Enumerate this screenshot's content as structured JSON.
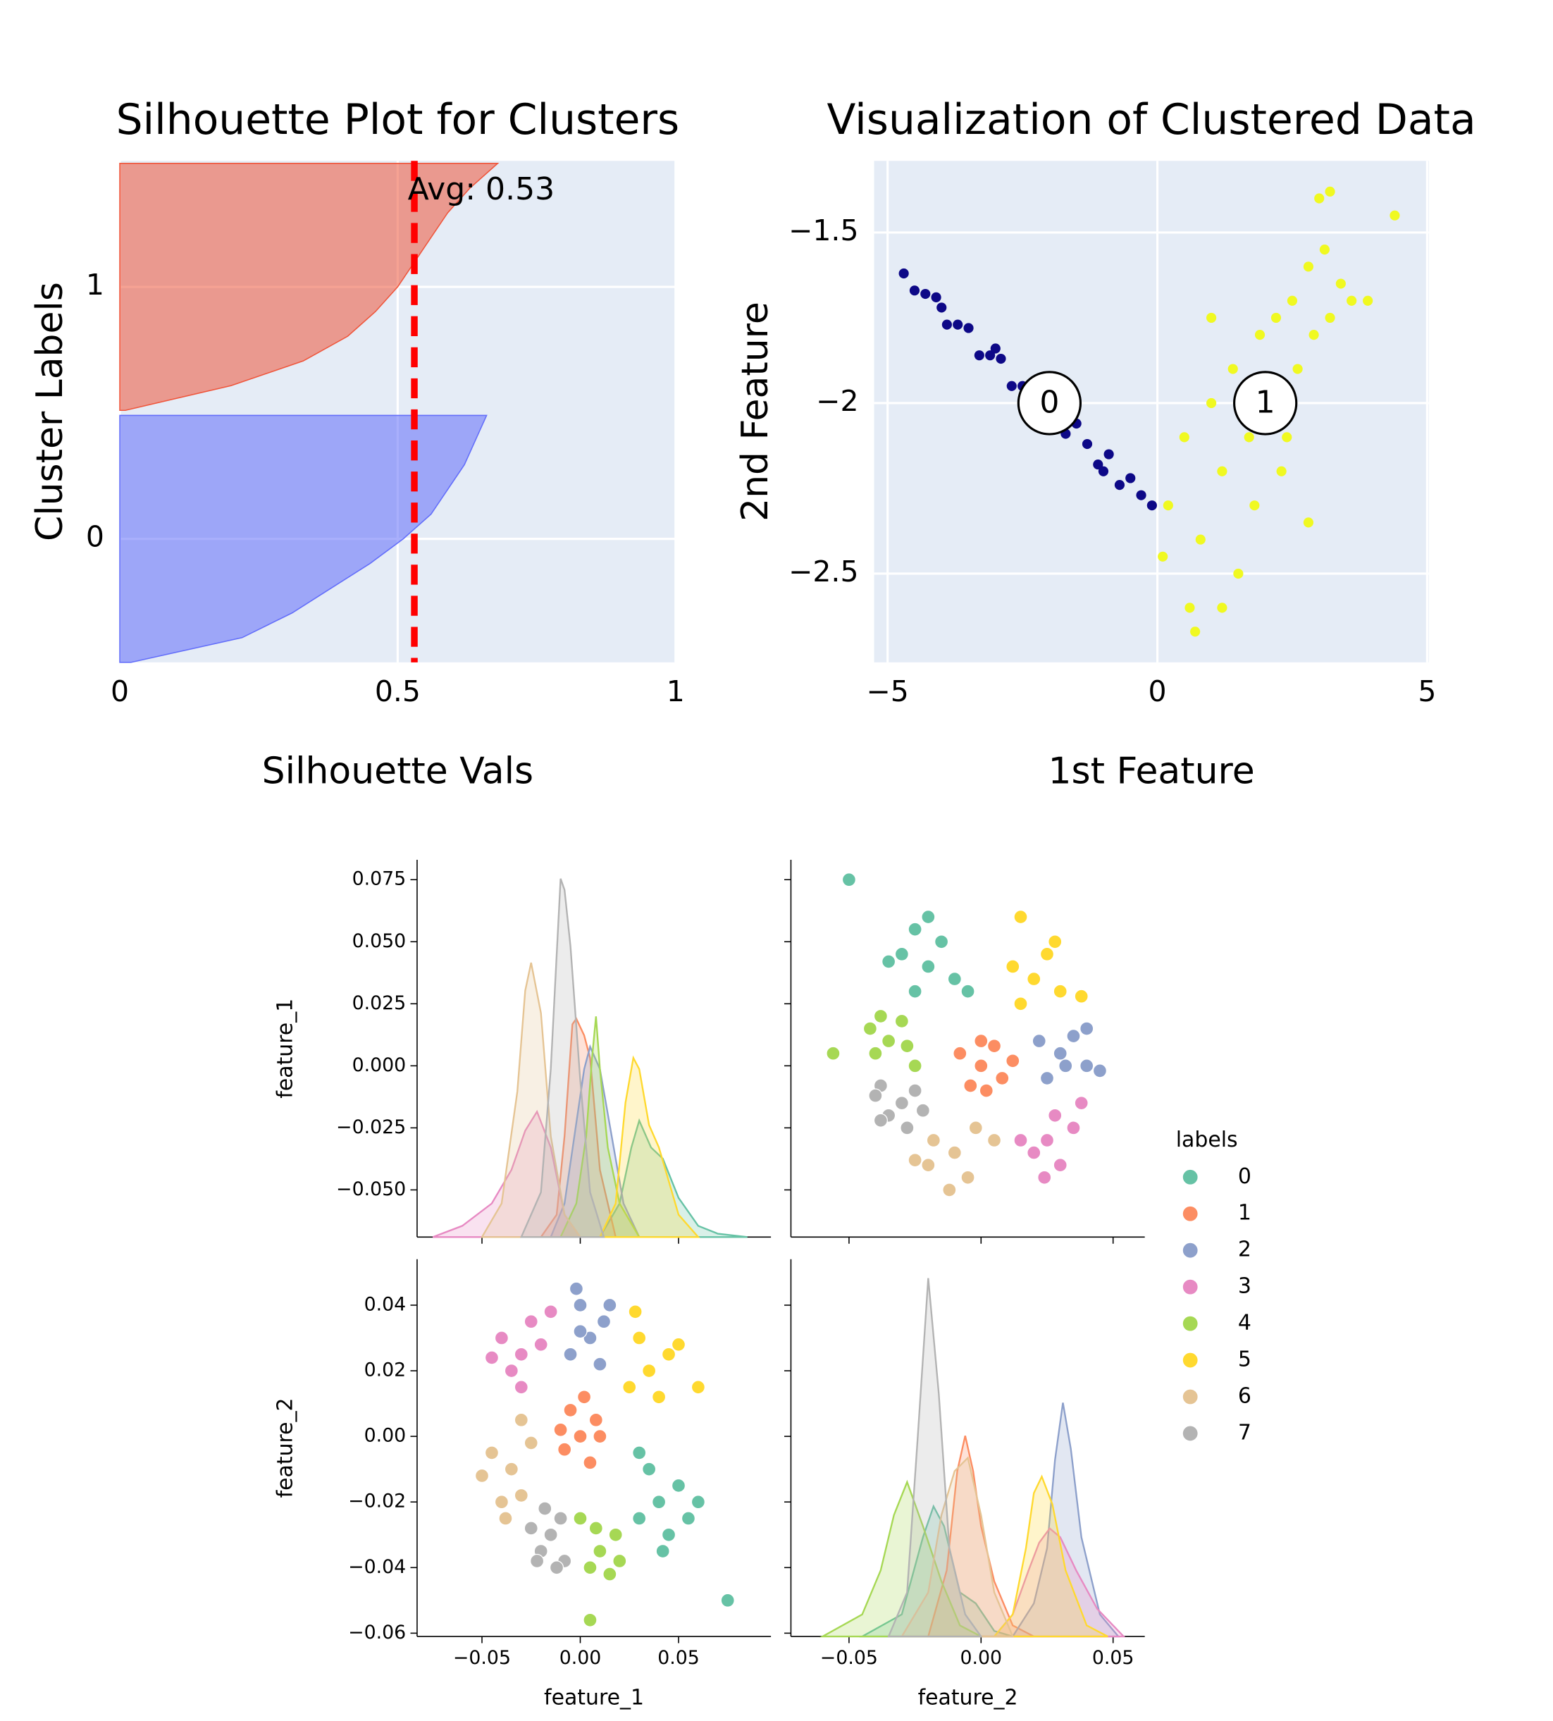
{
  "chart_data": [
    {
      "type": "silhouette",
      "title": "Silhouette Plot for Clusters",
      "xlabel": "Silhouette Vals",
      "ylabel": "Cluster Labels",
      "xlim": [
        0,
        1
      ],
      "xticks": [
        0,
        0.5,
        1
      ],
      "ylim": [
        -0.49,
        1.5
      ],
      "yticks": [
        0,
        1
      ],
      "grid": true,
      "series": [
        {
          "color": "#636efa",
          "values": [
            0.02,
            0.22,
            0.31,
            0.38,
            0.45,
            0.51,
            0.56,
            0.59,
            0.62,
            0.64,
            0.66
          ]
        },
        {
          "color": "#ef553b",
          "values": [
            0.01,
            0.2,
            0.33,
            0.41,
            0.46,
            0.5,
            0.53,
            0.56,
            0.59,
            0.63,
            0.68
          ]
        }
      ],
      "avg_line": {
        "value": 0.53,
        "label": "Avg: 0.53",
        "color": "#ff0000"
      }
    },
    {
      "type": "scatter",
      "title": "Visualization of Clustered Data",
      "xlabel": "1st Feature",
      "ylabel": "2nd Feature",
      "xlim": [
        -5.25,
        5.03
      ],
      "xticks": [
        {
          "value": -5,
          "label": "−5"
        },
        0,
        5
      ],
      "ylim": [
        -2.76,
        -1.29
      ],
      "yticks": [
        {
          "value": -2.5,
          "label": "−2.5"
        },
        {
          "value": -2,
          "label": "−2"
        },
        {
          "value": -1.5,
          "label": "−1.5"
        }
      ],
      "grid": true,
      "series": [
        {
          "color": "#0d0887",
          "x": [
            -4.7,
            -4.5,
            -4.3,
            -4.1,
            -3.9,
            -3.7,
            -3.5,
            -3.3,
            -3.1,
            -2.9,
            -2.7,
            -2.5,
            -2.3,
            -2.1,
            -1.9,
            -1.7,
            -1.5,
            -1.3,
            -1.1,
            -0.9,
            -0.7,
            -0.5,
            -0.3,
            -0.1,
            -3.0,
            -2.0,
            -1.0,
            -4.0
          ],
          "values": [
            -1.62,
            -1.67,
            -1.68,
            -1.69,
            -1.77,
            -1.77,
            -1.78,
            -1.86,
            -1.86,
            -1.87,
            -1.95,
            -1.95,
            -1.96,
            -2.03,
            -2.03,
            -2.09,
            -2.06,
            -2.12,
            -2.18,
            -2.15,
            -2.24,
            -2.22,
            -2.27,
            -2.3,
            -1.84,
            -2.04,
            -2.2,
            -1.72
          ]
        },
        {
          "color": "#f0f921",
          "x": [
            0.2,
            0.5,
            0.8,
            1.0,
            1.2,
            1.4,
            1.5,
            1.7,
            1.9,
            2.0,
            2.2,
            2.3,
            2.5,
            2.6,
            2.8,
            2.9,
            3.1,
            3.2,
            3.4,
            3.6,
            3.0,
            3.2,
            4.4,
            0.6,
            0.7,
            1.2,
            1.8,
            2.4,
            0.1,
            1.0,
            3.9,
            2.8
          ],
          "values": [
            -2.3,
            -2.1,
            -2.4,
            -2.0,
            -2.2,
            -1.9,
            -2.5,
            -2.1,
            -1.8,
            -2.0,
            -1.75,
            -2.2,
            -1.7,
            -1.9,
            -1.6,
            -1.8,
            -1.55,
            -1.75,
            -1.65,
            -1.7,
            -1.4,
            -1.38,
            -1.45,
            -2.6,
            -2.67,
            -2.6,
            -2.3,
            -2.1,
            -2.45,
            -1.75,
            -1.7,
            -2.35
          ]
        }
      ],
      "centers": {
        "labels": [
          "0",
          "1"
        ],
        "x": [
          -2,
          2
        ],
        "values": [
          -2,
          -2
        ]
      }
    },
    {
      "type": "pairplot",
      "hue_title": "labels",
      "legend": "center right",
      "vars": [
        {
          "name": "feature_1",
          "xlim": [
            -0.083,
            0.097
          ],
          "xticks": [
            {
              "value": -0.05,
              "label": "−0.05"
            },
            {
              "value": 0,
              "label": "0.00"
            },
            0.05
          ],
          "ylim": [
            -0.069,
            0.083
          ],
          "yticks": [
            {
              "value": -0.05,
              "label": "−0.050"
            },
            {
              "value": -0.025,
              "label": "−0.025"
            },
            {
              "value": 0,
              "label": "0.000"
            },
            0.025,
            {
              "value": 0.05,
              "label": "0.050"
            },
            0.075
          ]
        },
        {
          "name": "feature_2",
          "xlim": [
            -0.072,
            0.062
          ],
          "xticks": [
            {
              "value": -0.05,
              "label": "−0.05"
            },
            {
              "value": 0,
              "label": "0.00"
            },
            0.05
          ],
          "ylim": [
            -0.061,
            0.054
          ],
          "yticks": [
            {
              "value": -0.06,
              "label": "−0.06"
            },
            {
              "value": -0.04,
              "label": "−0.04"
            },
            {
              "value": -0.02,
              "label": "−0.02"
            },
            {
              "value": 0,
              "label": "0.00"
            },
            0.02,
            0.04
          ]
        }
      ],
      "series": [
        {
          "name": "0",
          "color": "#66c2a5",
          "x": [
            0.04,
            0.05,
            0.03,
            0.045,
            0.035,
            0.055,
            0.03,
            0.06,
            0.042,
            0.075
          ],
          "y": [
            -0.02,
            -0.015,
            -0.025,
            -0.03,
            -0.01,
            -0.025,
            -0.005,
            -0.02,
            -0.035,
            -0.05
          ],
          "kde": [
            {
              "x": [
                0.01,
                0.02,
                0.026,
                0.03,
                0.036,
                0.042,
                0.05,
                0.06,
                0.07,
                0.085
              ],
              "density": [
                0,
                0.3,
                0.8,
                1.04,
                0.8,
                0.7,
                0.35,
                0.1,
                0.03,
                0
              ]
            },
            {
              "x": [
                -0.045,
                -0.03,
                -0.022,
                -0.018,
                -0.014,
                -0.008,
                -0.002,
                0.005,
                0.012
              ],
              "density": [
                0,
                0.2,
                0.9,
                1.18,
                1.0,
                0.4,
                0.3,
                0.05,
                0
              ]
            }
          ]
        },
        {
          "name": "1",
          "color": "#fc8d62",
          "x": [
            0,
            0.008,
            -0.008,
            0.005,
            -0.005,
            0.01,
            -0.01,
            0.002
          ],
          "y": [
            0,
            0.005,
            -0.004,
            -0.008,
            0.008,
            0,
            0.002,
            0.012
          ],
          "kde": [
            {
              "x": [
                -0.02,
                -0.012,
                -0.008,
                -0.004,
                -0.002,
                0.002,
                0.005,
                0.01,
                0.018
              ],
              "density": [
                0,
                0.2,
                0.9,
                1.9,
                1.95,
                1.8,
                1.6,
                0.6,
                0
              ]
            },
            {
              "x": [
                -0.02,
                -0.013,
                -0.009,
                -0.006,
                -0.003,
                0,
                0.005,
                0.012,
                0.02
              ],
              "density": [
                0,
                0.6,
                1.5,
                1.82,
                1.5,
                1.0,
                0.5,
                0.1,
                0
              ]
            }
          ]
        },
        {
          "name": "2",
          "color": "#8da0cb",
          "x": [
            0.005,
            0,
            0.012,
            -0.005,
            0.01,
            -0.002,
            0.015,
            0
          ],
          "y": [
            0.03,
            0.04,
            0.035,
            0.025,
            0.022,
            0.045,
            0.04,
            0.032
          ],
          "kde": [
            {
              "x": [
                -0.015,
                -0.008,
                -0.003,
                0.002,
                0.005,
                0.01,
                0.015,
                0.022,
                0.03
              ],
              "density": [
                0,
                0.3,
                0.9,
                1.5,
                1.7,
                1.5,
                1.0,
                0.3,
                0
              ]
            },
            {
              "x": [
                0.012,
                0.02,
                0.025,
                0.028,
                0.031,
                0.034,
                0.038,
                0.045,
                0.052
              ],
              "density": [
                0,
                0.3,
                0.8,
                1.6,
                2.12,
                1.7,
                0.9,
                0.2,
                0
              ]
            }
          ]
        },
        {
          "name": "3",
          "color": "#e78ac3",
          "x": [
            -0.03,
            -0.04,
            -0.025,
            -0.035,
            -0.02,
            -0.045,
            -0.03,
            -0.015
          ],
          "y": [
            0.025,
            0.03,
            0.035,
            0.02,
            0.028,
            0.024,
            0.015,
            0.038
          ],
          "kde": [
            {
              "x": [
                -0.075,
                -0.06,
                -0.045,
                -0.035,
                -0.028,
                -0.022,
                -0.015,
                -0.008,
                0
              ],
              "density": [
                0,
                0.1,
                0.3,
                0.6,
                0.95,
                1.12,
                0.8,
                0.2,
                0
              ]
            },
            {
              "x": [
                0.005,
                0.012,
                0.018,
                0.022,
                0.026,
                0.03,
                0.036,
                0.044,
                0.054
              ],
              "density": [
                0,
                0.2,
                0.6,
                0.85,
                0.98,
                0.9,
                0.6,
                0.25,
                0
              ]
            }
          ]
        },
        {
          "name": "4",
          "color": "#a6d854",
          "x": [
            0.01,
            0.005,
            0.018,
            0,
            0.015,
            0.02,
            0.008,
            0.005
          ],
          "y": [
            -0.035,
            -0.04,
            -0.03,
            -0.025,
            -0.042,
            -0.038,
            -0.028,
            -0.056
          ],
          "kde": [
            {
              "x": [
                -0.01,
                -0.002,
                0.003,
                0.006,
                0.008,
                0.01,
                0.014,
                0.02,
                0.03
              ],
              "density": [
                0,
                0.3,
                0.9,
                1.6,
                1.97,
                1.5,
                0.8,
                0.3,
                0
              ]
            },
            {
              "x": [
                -0.06,
                -0.045,
                -0.038,
                -0.033,
                -0.028,
                -0.022,
                -0.015,
                -0.008,
                0
              ],
              "density": [
                0,
                0.2,
                0.6,
                1.1,
                1.4,
                1.0,
                0.5,
                0.1,
                0
              ]
            }
          ]
        },
        {
          "name": "5",
          "color": "#ffd92f",
          "x": [
            0.035,
            0.03,
            0.045,
            0.025,
            0.04,
            0.05,
            0.028,
            0.06
          ],
          "y": [
            0.02,
            0.03,
            0.025,
            0.015,
            0.012,
            0.028,
            0.038,
            0.015
          ],
          "kde": [
            {
              "x": [
                0.01,
                0.018,
                0.023,
                0.027,
                0.03,
                0.035,
                0.04,
                0.05,
                0.06
              ],
              "density": [
                0,
                0.3,
                1.2,
                1.6,
                1.5,
                1.0,
                0.8,
                0.2,
                0
              ]
            },
            {
              "x": [
                0.005,
                0.012,
                0.017,
                0.02,
                0.023,
                0.027,
                0.032,
                0.04,
                0.048
              ],
              "density": [
                0,
                0.2,
                0.8,
                1.3,
                1.45,
                1.2,
                0.6,
                0.1,
                0
              ]
            }
          ]
        },
        {
          "name": "6",
          "color": "#e5c494",
          "x": [
            -0.035,
            -0.045,
            -0.03,
            -0.04,
            -0.025,
            -0.05,
            -0.03,
            -0.038
          ],
          "y": [
            -0.01,
            -0.005,
            -0.018,
            -0.02,
            -0.002,
            -0.012,
            0.005,
            -0.025
          ],
          "kde": [
            {
              "x": [
                -0.05,
                -0.04,
                -0.032,
                -0.028,
                -0.025,
                -0.02,
                -0.015,
                -0.008,
                0
              ],
              "density": [
                0,
                0.3,
                1.3,
                2.2,
                2.45,
                2.0,
                0.9,
                0.2,
                0
              ]
            },
            {
              "x": [
                -0.03,
                -0.02,
                -0.015,
                -0.01,
                -0.005,
                0,
                0.005,
                0.012
              ],
              "density": [
                0,
                0.4,
                1.1,
                1.5,
                1.62,
                1.1,
                0.4,
                0
              ]
            }
          ]
        },
        {
          "name": "7",
          "color": "#b3b3b3",
          "x": [
            -0.015,
            -0.02,
            -0.01,
            -0.025,
            -0.008,
            -0.018,
            -0.012,
            -0.022
          ],
          "y": [
            -0.03,
            -0.035,
            -0.025,
            -0.028,
            -0.038,
            -0.022,
            -0.04,
            -0.038
          ],
          "kde": [
            {
              "x": [
                -0.03,
                -0.02,
                -0.015,
                -0.01,
                -0.008,
                -0.005,
                0,
                0.005,
                0.012
              ],
              "density": [
                0,
                0.4,
                1.5,
                3.2,
                3.1,
                2.6,
                1.4,
                0.4,
                0
              ]
            },
            {
              "x": [
                -0.035,
                -0.028,
                -0.024,
                -0.02,
                -0.016,
                -0.012,
                -0.006,
                0
              ],
              "density": [
                0,
                0.4,
                1.8,
                3.25,
                2.2,
                0.8,
                0.2,
                0
              ]
            }
          ]
        }
      ]
    }
  ]
}
